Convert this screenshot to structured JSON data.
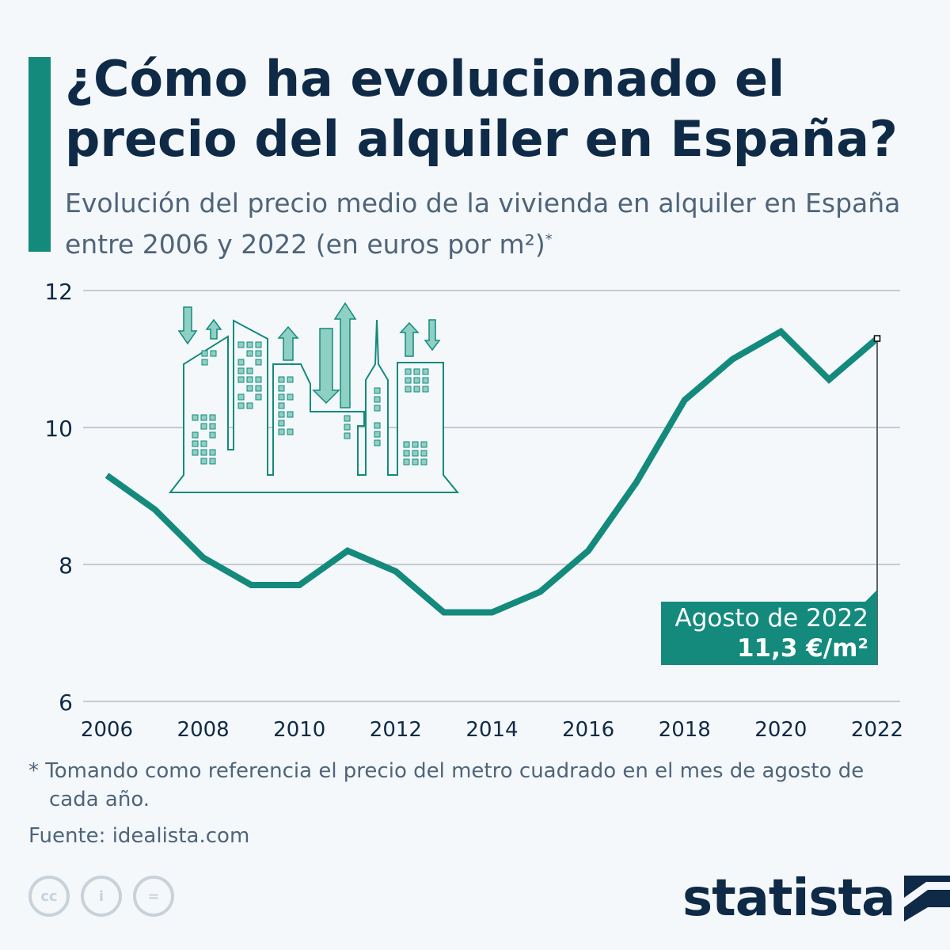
{
  "header": {
    "title": "¿Cómo ha evolucionado el precio del alquiler en España?",
    "subtitle": "Evolución del precio medio de la vivienda en alquiler en España entre 2006 y 2022 (en euros por m²)",
    "subtitle_mark": "*"
  },
  "chart_data": {
    "type": "line",
    "xlabel": "",
    "ylabel": "",
    "ylim": [
      6,
      12
    ],
    "yticks": [
      6,
      8,
      10,
      12
    ],
    "xticks": [
      2006,
      2008,
      2010,
      2012,
      2014,
      2016,
      2018,
      2020,
      2022
    ],
    "grid": true,
    "x": [
      2006,
      2007,
      2008,
      2009,
      2010,
      2011,
      2012,
      2013,
      2014,
      2015,
      2016,
      2017,
      2018,
      2019,
      2020,
      2021,
      2022
    ],
    "values": [
      9.3,
      8.8,
      8.1,
      7.7,
      7.7,
      8.2,
      7.9,
      7.3,
      7.3,
      7.6,
      8.2,
      9.2,
      10.4,
      11.0,
      11.4,
      10.7,
      11.3
    ],
    "color": "#138a7c",
    "annotation": {
      "line1": "Agosto de 2022",
      "line2": "11,3 €/m²"
    }
  },
  "footer": {
    "note": "* Tomando como referencia el precio del metro cuadrado en el mes de agosto de cada año.",
    "source": "Fuente: idealista.com",
    "icons": [
      "cc-icon",
      "attribution-icon",
      "no-derivatives-icon"
    ],
    "logo": "statista"
  },
  "colors": {
    "accent": "#138a7c",
    "title": "#0f2a46",
    "text": "#4f6479"
  }
}
